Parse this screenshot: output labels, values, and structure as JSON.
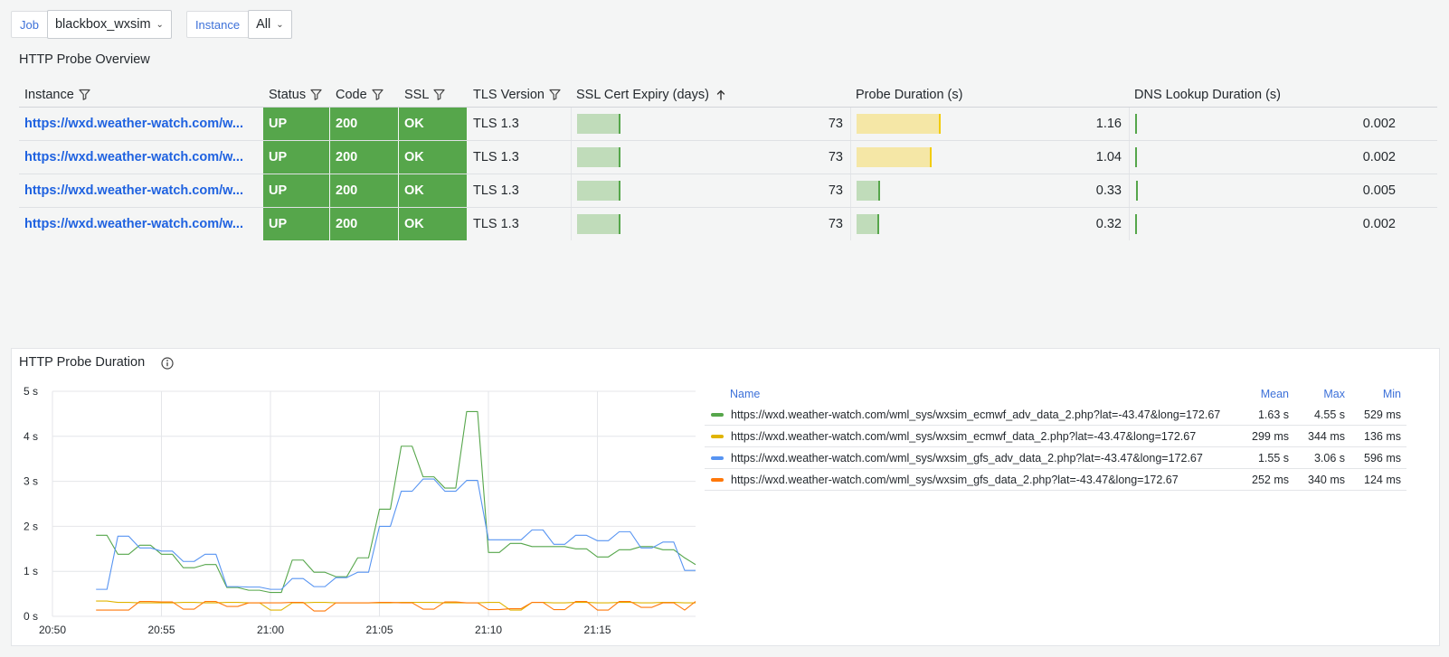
{
  "variables": [
    {
      "label": "Job",
      "value": "blackbox_wxsim"
    },
    {
      "label": "Instance",
      "value": "All"
    }
  ],
  "table_panel": {
    "title": "HTTP Probe Overview",
    "columns": [
      "Instance",
      "Status",
      "Code",
      "SSL",
      "TLS Version",
      "SSL Cert Expiry (days)",
      "Probe Duration (s)",
      "DNS Lookup Duration (s)"
    ],
    "rows": [
      {
        "instance": "https://wxd.weather-watch.com/w...",
        "status": "UP",
        "code": "200",
        "ssl": "OK",
        "tls": "TLS 1.3",
        "expiry": "73",
        "expiry_level": 0.075,
        "duration": "1.16",
        "duration_level": 0.3,
        "dns": "0.002",
        "dns_level": 0.004
      },
      {
        "instance": "https://wxd.weather-watch.com/w...",
        "status": "UP",
        "code": "200",
        "ssl": "OK",
        "tls": "TLS 1.3",
        "expiry": "73",
        "expiry_level": 0.075,
        "duration": "1.04",
        "duration_level": 0.27,
        "dns": "0.002",
        "dns_level": 0.004
      },
      {
        "instance": "https://wxd.weather-watch.com/w...",
        "status": "UP",
        "code": "200",
        "ssl": "OK",
        "tls": "TLS 1.3",
        "expiry": "73",
        "expiry_level": 0.075,
        "duration": "0.33",
        "duration_level": 0.085,
        "dns": "0.005",
        "dns_level": 0.01
      },
      {
        "instance": "https://wxd.weather-watch.com/w...",
        "status": "UP",
        "code": "200",
        "ssl": "OK",
        "tls": "TLS 1.3",
        "expiry": "73",
        "expiry_level": 0.075,
        "duration": "0.32",
        "duration_level": 0.08,
        "dns": "0.002",
        "dns_level": 0.004
      }
    ]
  },
  "colors": {
    "ok_green": "#56a64b",
    "gauge_green_fill": "#c0dcba",
    "gauge_green_cap": "#56a64b",
    "gauge_yellow_fill": "#f5e7a6",
    "gauge_yellow_cap": "#f2cc0c",
    "link": "#1f62e0"
  },
  "chart_panel": {
    "title": "HTTP Probe Duration"
  },
  "legend": {
    "headers": {
      "name": "Name",
      "mean": "Mean",
      "max": "Max",
      "min": "Min"
    },
    "rows": [
      {
        "name": "https://wxd.weather-watch.com/wml_sys/wxsim_ecmwf_adv_data_2.php?lat=-43.47&long=172.67",
        "mean": "1.63 s",
        "max": "4.55 s",
        "min": "529 ms",
        "color": "#56a64b"
      },
      {
        "name": "https://wxd.weather-watch.com/wml_sys/wxsim_ecmwf_data_2.php?lat=-43.47&long=172.67",
        "mean": "299 ms",
        "max": "344 ms",
        "min": "136 ms",
        "color": "#e0b400"
      },
      {
        "name": "https://wxd.weather-watch.com/wml_sys/wxsim_gfs_adv_data_2.php?lat=-43.47&long=172.67",
        "mean": "1.55 s",
        "max": "3.06 s",
        "min": "596 ms",
        "color": "#5794f2"
      },
      {
        "name": "https://wxd.weather-watch.com/wml_sys/wxsim_gfs_data_2.php?lat=-43.47&long=172.67",
        "mean": "252 ms",
        "max": "340 ms",
        "min": "124 ms",
        "color": "#ff780a"
      }
    ]
  },
  "chart_data": {
    "type": "line",
    "title": "HTTP Probe Duration",
    "xlabel": "",
    "ylabel": "",
    "y_unit": "s",
    "ylim": [
      0,
      5
    ],
    "yticks": [
      "0 s",
      "1 s",
      "2 s",
      "3 s",
      "4 s",
      "5 s"
    ],
    "xlim_minutes": [
      0,
      29.5
    ],
    "xticks": [
      "20:50",
      "20:55",
      "21:00",
      "21:05",
      "21:10",
      "21:15"
    ],
    "grid": true,
    "legend_position": "right",
    "x": [
      2.0,
      2.5,
      3.0,
      3.5,
      4.0,
      4.5,
      5.0,
      5.5,
      6.0,
      6.5,
      7.0,
      7.5,
      8.0,
      8.5,
      9.0,
      9.5,
      10.0,
      10.5,
      11.0,
      11.5,
      12.0,
      12.5,
      13.0,
      13.5,
      14.0,
      14.5,
      15.0,
      15.5,
      16.0,
      16.5,
      17.0,
      17.5,
      18.0,
      18.5,
      19.0,
      19.5,
      20.0,
      20.5,
      21.0,
      21.5,
      22.0,
      22.5,
      23.0,
      23.5,
      24.0,
      24.5,
      25.0,
      25.5,
      26.0,
      26.5,
      27.0,
      27.5,
      28.0,
      28.5,
      29.0,
      29.5
    ],
    "series": [
      {
        "name": "https://wxd.weather-watch.com/wml_sys/wxsim_ecmwf_adv_data_2.php?lat=-43.47&long=172.67",
        "color": "#56a64b",
        "values": [
          1.8,
          1.8,
          1.38,
          1.38,
          1.58,
          1.58,
          1.38,
          1.38,
          1.08,
          1.08,
          1.15,
          1.15,
          0.64,
          0.64,
          0.58,
          0.58,
          0.53,
          0.53,
          1.25,
          1.25,
          0.98,
          0.98,
          0.88,
          0.88,
          1.3,
          1.3,
          2.38,
          2.38,
          3.78,
          3.78,
          3.1,
          3.1,
          2.85,
          2.85,
          4.55,
          4.55,
          1.42,
          1.42,
          1.62,
          1.62,
          1.55,
          1.55,
          1.55,
          1.55,
          1.5,
          1.5,
          1.32,
          1.32,
          1.48,
          1.48,
          1.55,
          1.55,
          1.48,
          1.48,
          1.3,
          1.15
        ]
      },
      {
        "name": "https://wxd.weather-watch.com/wml_sys/wxsim_ecmwf_data_2.php?lat=-43.47&long=172.67",
        "color": "#e0b400",
        "values": [
          0.34,
          0.34,
          0.31,
          0.31,
          0.3,
          0.3,
          0.3,
          0.3,
          0.31,
          0.31,
          0.3,
          0.3,
          0.31,
          0.31,
          0.3,
          0.3,
          0.14,
          0.14,
          0.3,
          0.3,
          0.31,
          0.31,
          0.3,
          0.3,
          0.3,
          0.3,
          0.3,
          0.3,
          0.31,
          0.31,
          0.31,
          0.31,
          0.3,
          0.3,
          0.3,
          0.3,
          0.31,
          0.31,
          0.14,
          0.14,
          0.31,
          0.31,
          0.3,
          0.3,
          0.31,
          0.31,
          0.3,
          0.3,
          0.31,
          0.31,
          0.3,
          0.3,
          0.31,
          0.31,
          0.3,
          0.3
        ]
      },
      {
        "name": "https://wxd.weather-watch.com/wml_sys/wxsim_gfs_adv_data_2.php?lat=-43.47&long=172.67",
        "color": "#5794f2",
        "values": [
          0.6,
          0.6,
          1.78,
          1.78,
          1.52,
          1.52,
          1.45,
          1.45,
          1.22,
          1.22,
          1.38,
          1.38,
          0.66,
          0.66,
          0.65,
          0.65,
          0.6,
          0.6,
          0.84,
          0.84,
          0.66,
          0.66,
          0.86,
          0.86,
          0.98,
          0.98,
          2.0,
          2.0,
          2.78,
          2.78,
          3.05,
          3.05,
          2.78,
          2.78,
          3.02,
          3.02,
          1.7,
          1.7,
          1.7,
          1.7,
          1.92,
          1.92,
          1.6,
          1.6,
          1.8,
          1.8,
          1.68,
          1.68,
          1.88,
          1.88,
          1.52,
          1.52,
          1.65,
          1.65,
          1.02,
          1.02
        ]
      },
      {
        "name": "https://wxd.weather-watch.com/wml_sys/wxsim_gfs_data_2.php?lat=-43.47&long=172.67",
        "color": "#ff780a",
        "values": [
          0.14,
          0.14,
          0.14,
          0.14,
          0.33,
          0.33,
          0.32,
          0.32,
          0.16,
          0.16,
          0.33,
          0.33,
          0.22,
          0.22,
          0.3,
          0.3,
          0.3,
          0.3,
          0.31,
          0.31,
          0.12,
          0.12,
          0.3,
          0.3,
          0.3,
          0.3,
          0.31,
          0.31,
          0.3,
          0.3,
          0.16,
          0.16,
          0.32,
          0.32,
          0.3,
          0.3,
          0.15,
          0.15,
          0.17,
          0.17,
          0.31,
          0.31,
          0.15,
          0.15,
          0.33,
          0.33,
          0.14,
          0.14,
          0.33,
          0.33,
          0.2,
          0.2,
          0.3,
          0.3,
          0.14,
          0.33
        ]
      }
    ]
  }
}
